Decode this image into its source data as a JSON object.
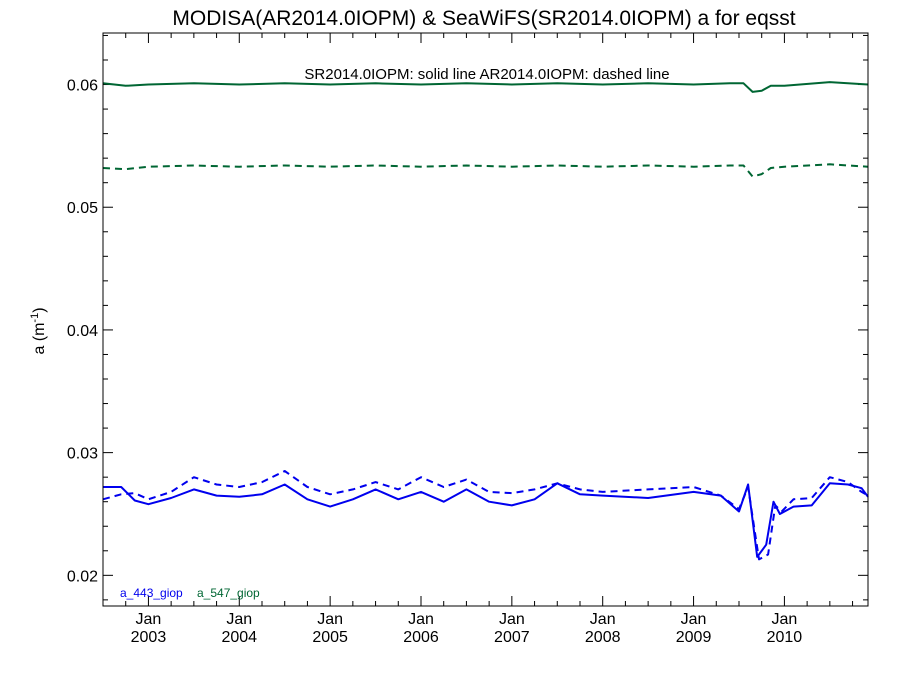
{
  "chart_data": {
    "type": "line",
    "title": "MODISA(AR2014.0IOPM) & SeaWiFS(SR2014.0IOPM)  a for eqsst",
    "ylabel": "a (m",
    "ylabel_sup": "-1",
    "ylabel_close": ")",
    "annotation": "SR2014.0IOPM: solid line   AR2014.0IOPM: dashed line",
    "xlim": [
      2002.5,
      2010.92
    ],
    "ylim": [
      0.0175,
      0.0642
    ],
    "yticks": [
      0.02,
      0.03,
      0.04,
      0.05,
      0.06
    ],
    "ytick_labels": [
      "0.02",
      "0.03",
      "0.04",
      "0.05",
      "0.06"
    ],
    "xticks": [
      {
        "x": 2003.0,
        "month": "Jan",
        "year": "2003"
      },
      {
        "x": 2004.0,
        "month": "Jan",
        "year": "2004"
      },
      {
        "x": 2005.0,
        "month": "Jan",
        "year": "2005"
      },
      {
        "x": 2006.0,
        "month": "Jan",
        "year": "2006"
      },
      {
        "x": 2007.0,
        "month": "Jan",
        "year": "2007"
      },
      {
        "x": 2008.0,
        "month": "Jan",
        "year": "2008"
      },
      {
        "x": 2009.0,
        "month": "Jan",
        "year": "2009"
      },
      {
        "x": 2010.0,
        "month": "Jan",
        "year": "2010"
      }
    ],
    "grid": false,
    "legend": [
      {
        "name": "a_443_giop",
        "color": "#0000ee"
      },
      {
        "name": "a_547_giop",
        "color": "#006633"
      }
    ],
    "series": [
      {
        "name": "a_547_giop",
        "source": "SR2014.0IOPM",
        "style": "solid",
        "color": "#006633",
        "x": [
          2002.5,
          2002.75,
          2003.0,
          2003.5,
          2004.0,
          2004.5,
          2005.0,
          2005.5,
          2006.0,
          2006.5,
          2007.0,
          2007.5,
          2008.0,
          2008.5,
          2009.0,
          2009.4,
          2009.55,
          2009.65,
          2009.75,
          2009.85,
          2010.0,
          2010.5,
          2010.92
        ],
        "y": [
          0.0601,
          0.0599,
          0.06,
          0.0601,
          0.06,
          0.0601,
          0.06,
          0.0601,
          0.06,
          0.0601,
          0.06,
          0.0601,
          0.06,
          0.0601,
          0.06,
          0.0601,
          0.0601,
          0.0594,
          0.0595,
          0.0599,
          0.0599,
          0.0602,
          0.06
        ]
      },
      {
        "name": "a_547_giop",
        "source": "AR2014.0IOPM",
        "style": "dashed",
        "color": "#006633",
        "x": [
          2002.5,
          2002.75,
          2003.0,
          2003.5,
          2004.0,
          2004.5,
          2005.0,
          2005.5,
          2006.0,
          2006.5,
          2007.0,
          2007.5,
          2008.0,
          2008.5,
          2009.0,
          2009.4,
          2009.55,
          2009.65,
          2009.75,
          2009.85,
          2010.0,
          2010.5,
          2010.92
        ],
        "y": [
          0.0532,
          0.0531,
          0.0533,
          0.0534,
          0.0533,
          0.0534,
          0.0533,
          0.0534,
          0.0533,
          0.0534,
          0.0533,
          0.0534,
          0.0533,
          0.0534,
          0.0533,
          0.0534,
          0.0534,
          0.0525,
          0.0527,
          0.0532,
          0.0533,
          0.0535,
          0.0533
        ]
      },
      {
        "name": "a_443_giop",
        "source": "SR2014.0IOPM",
        "style": "solid",
        "color": "#0000ee",
        "x": [
          2002.5,
          2002.7,
          2002.85,
          2003.0,
          2003.25,
          2003.5,
          2003.75,
          2004.0,
          2004.25,
          2004.5,
          2004.75,
          2005.0,
          2005.25,
          2005.5,
          2005.75,
          2006.0,
          2006.25,
          2006.5,
          2006.75,
          2007.0,
          2007.25,
          2007.5,
          2007.75,
          2008.0,
          2008.5,
          2009.0,
          2009.3,
          2009.5,
          2009.6,
          2009.7,
          2009.8,
          2009.88,
          2009.95,
          2010.1,
          2010.3,
          2010.5,
          2010.7,
          2010.85,
          2010.92
        ],
        "y": [
          0.0272,
          0.0272,
          0.0261,
          0.0258,
          0.0263,
          0.027,
          0.0265,
          0.0264,
          0.0266,
          0.0274,
          0.0262,
          0.0256,
          0.0262,
          0.027,
          0.0262,
          0.0268,
          0.026,
          0.027,
          0.026,
          0.0257,
          0.0262,
          0.0275,
          0.0266,
          0.0265,
          0.0263,
          0.0268,
          0.0265,
          0.0252,
          0.0274,
          0.0215,
          0.0225,
          0.026,
          0.025,
          0.0256,
          0.0257,
          0.0275,
          0.0274,
          0.0271,
          0.0264
        ]
      },
      {
        "name": "a_443_giop",
        "source": "AR2014.0IOPM",
        "style": "dashed",
        "color": "#0000ee",
        "x": [
          2002.5,
          2002.7,
          2002.85,
          2003.0,
          2003.25,
          2003.5,
          2003.75,
          2004.0,
          2004.25,
          2004.5,
          2004.75,
          2005.0,
          2005.25,
          2005.5,
          2005.75,
          2006.0,
          2006.25,
          2006.5,
          2006.75,
          2007.0,
          2007.25,
          2007.5,
          2007.75,
          2008.0,
          2008.5,
          2009.0,
          2009.3,
          2009.5,
          2009.6,
          2009.72,
          2009.82,
          2009.9,
          2009.97,
          2010.1,
          2010.3,
          2010.5,
          2010.7,
          2010.85,
          2010.92
        ],
        "y": [
          0.0262,
          0.0266,
          0.0267,
          0.0262,
          0.0268,
          0.028,
          0.0274,
          0.0272,
          0.0276,
          0.0285,
          0.0272,
          0.0266,
          0.027,
          0.0276,
          0.027,
          0.028,
          0.0272,
          0.0278,
          0.0268,
          0.0267,
          0.027,
          0.0275,
          0.027,
          0.0268,
          0.027,
          0.0272,
          0.0265,
          0.0254,
          0.0272,
          0.0213,
          0.0217,
          0.0257,
          0.0252,
          0.0262,
          0.0263,
          0.028,
          0.0276,
          0.0268,
          0.0265
        ]
      }
    ]
  }
}
